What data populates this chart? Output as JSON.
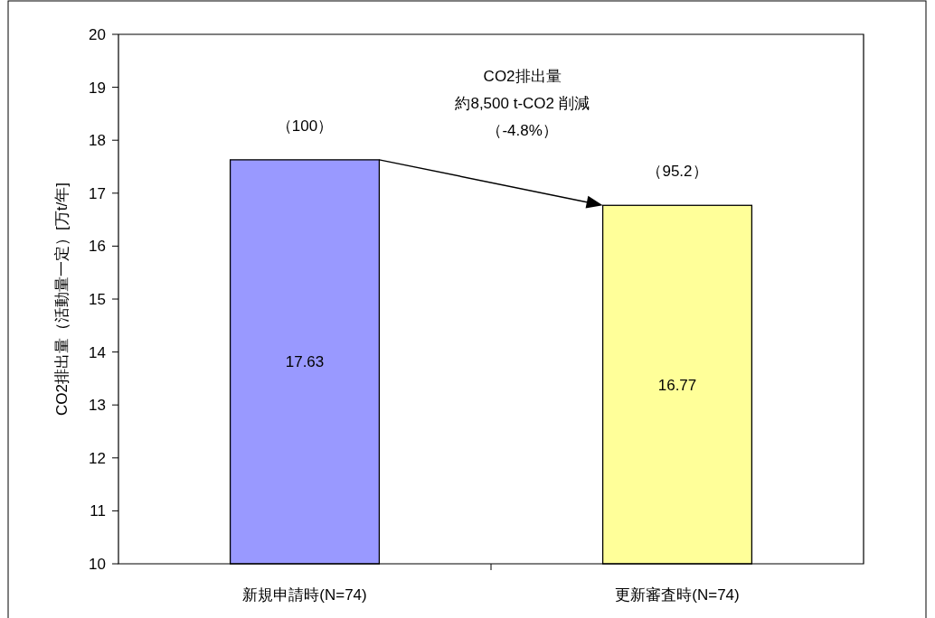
{
  "chart_data": {
    "type": "bar",
    "ylabel": "CO2排出量（活動量一定）[万t/年]",
    "categories": [
      "新規申請時(N=74)",
      "更新審査時(N=74)"
    ],
    "values": [
      17.63,
      16.77
    ],
    "colors": [
      "#9999ff",
      "#ffff99"
    ],
    "ylim": [
      10,
      20
    ],
    "yticks": [
      10,
      11,
      12,
      13,
      14,
      15,
      16,
      17,
      18,
      19,
      20
    ],
    "data_labels": true,
    "grid": false,
    "annotations": [
      {
        "text": "（100）",
        "x": "新規申請時(N=74)",
        "y": 17.63
      },
      {
        "text": "（95.2）",
        "x": "更新審査時(N=74)",
        "y": 16.77
      },
      "CO2排出量",
      "約8,500 t-CO2 削減",
      "（-4.8%）"
    ]
  }
}
